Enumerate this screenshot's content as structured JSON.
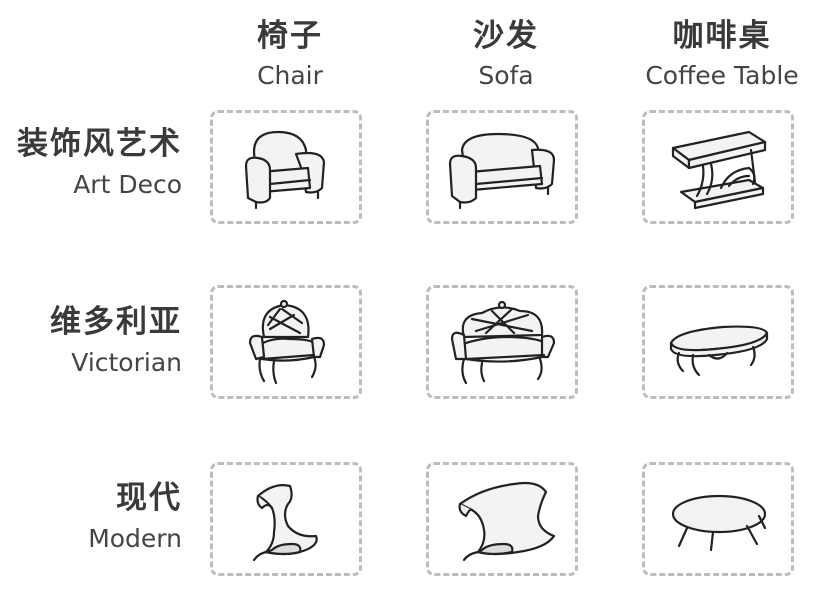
{
  "columns": [
    {
      "zh": "椅子",
      "en": "Chair"
    },
    {
      "zh": "沙发",
      "en": "Sofa"
    },
    {
      "zh": "咖啡桌",
      "en": "Coffee Table"
    }
  ],
  "rows": [
    {
      "zh": "装饰风艺术",
      "en": "Art Deco"
    },
    {
      "zh": "维多利亚",
      "en": "Victorian"
    },
    {
      "zh": "现代",
      "en": "Modern"
    }
  ],
  "cells": [
    [
      "art-deco-chair-icon",
      "art-deco-sofa-icon",
      "art-deco-coffee-table-icon"
    ],
    [
      "victorian-chair-icon",
      "victorian-sofa-icon",
      "victorian-coffee-table-icon"
    ],
    [
      "modern-chair-icon",
      "modern-sofa-icon",
      "modern-coffee-table-icon"
    ]
  ]
}
